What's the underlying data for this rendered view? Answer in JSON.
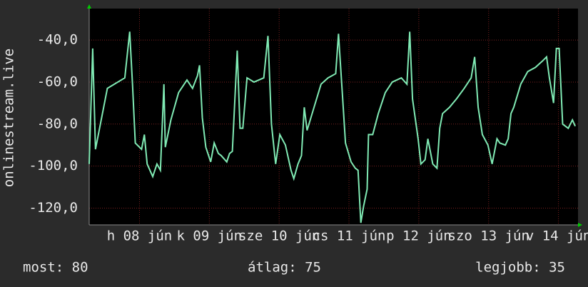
{
  "chart_data": {
    "type": "line",
    "y_label": "onlinestream.live",
    "xlim": [
      0,
      7
    ],
    "xticks": [
      {
        "value": 0.72,
        "label": "h 08 jún"
      },
      {
        "value": 1.72,
        "label": "k 09 jún"
      },
      {
        "value": 2.72,
        "label": "sze 10 jún"
      },
      {
        "value": 3.72,
        "label": "cs 11 jún"
      },
      {
        "value": 4.72,
        "label": "p 12 jún"
      },
      {
        "value": 5.72,
        "label": "szo 13 jún"
      },
      {
        "value": 6.72,
        "label": "v 14 jún"
      }
    ],
    "ylim": [
      -128,
      -25
    ],
    "yticks": [
      {
        "value": -40,
        "label": "-40,0"
      },
      {
        "value": -60,
        "label": "-60,0"
      },
      {
        "value": -80,
        "label": "-80,0"
      },
      {
        "value": -100,
        "label": "-100,0"
      },
      {
        "value": -120,
        "label": "-120,0"
      }
    ],
    "grid": true,
    "x": [
      0,
      0.05,
      0.09,
      0.26,
      0.36,
      0.51,
      0.58,
      0.62,
      0.66,
      0.75,
      0.79,
      0.83,
      0.91,
      0.97,
      1.02,
      1.07,
      1.09,
      1.17,
      1.28,
      1.4,
      1.48,
      1.55,
      1.58,
      1.62,
      1.67,
      1.74,
      1.79,
      1.85,
      1.89,
      1.97,
      2.01,
      2.05,
      2.12,
      2.16,
      2.2,
      2.26,
      2.36,
      2.5,
      2.56,
      2.61,
      2.67,
      2.73,
      2.81,
      2.89,
      2.93,
      2.99,
      3.04,
      3.08,
      3.12,
      3.22,
      3.32,
      3.42,
      3.53,
      3.57,
      3.63,
      3.67,
      3.75,
      3.81,
      3.85,
      3.89,
      3.93,
      3.98,
      4.0,
      4.06,
      4.14,
      4.24,
      4.34,
      4.47,
      4.55,
      4.59,
      4.63,
      4.71,
      4.75,
      4.81,
      4.85,
      4.92,
      4.98,
      5.02,
      5.06,
      5.16,
      5.26,
      5.37,
      5.47,
      5.52,
      5.57,
      5.63,
      5.71,
      5.77,
      5.84,
      5.88,
      5.96,
      6.0,
      6.04,
      6.08,
      6.18,
      6.28,
      6.39,
      6.49,
      6.55,
      6.59,
      6.65,
      6.69,
      6.73,
      6.78,
      6.86,
      6.92,
      6.96
    ],
    "series": [
      {
        "color": "#80eab4",
        "values": [
          -99,
          -44,
          -92,
          -63,
          -61,
          -58,
          -36,
          -61,
          -89,
          -92,
          -85,
          -99,
          -105,
          -99,
          -102,
          -61,
          -91,
          -78,
          -65,
          -59,
          -63,
          -57,
          -52,
          -77,
          -91,
          -98,
          -89,
          -94,
          -95,
          -98,
          -94,
          -93,
          -45,
          -82,
          -82,
          -58,
          -60,
          -58,
          -38,
          -80,
          -99,
          -85,
          -90,
          -102,
          -106,
          -99,
          -95,
          -72,
          -83,
          -72,
          -61,
          -58,
          -56,
          -37,
          -68,
          -89,
          -98,
          -101,
          -102,
          -127,
          -119,
          -111,
          -85,
          -85,
          -75,
          -65,
          -60,
          -58,
          -61,
          -36,
          -68,
          -87,
          -99,
          -97,
          -87,
          -99,
          -101,
          -82,
          -75,
          -72,
          -68,
          -63,
          -58,
          -48,
          -72,
          -85,
          -90,
          -99,
          -87,
          -89,
          -90,
          -87,
          -75,
          -72,
          -61,
          -55,
          -53,
          -50,
          -48,
          -58,
          -70,
          -44,
          -44,
          -80,
          -82,
          -78,
          -81
        ]
      }
    ],
    "footer": [
      "most: 80",
      "átlag: 75",
      "legjobb: 35"
    ]
  }
}
